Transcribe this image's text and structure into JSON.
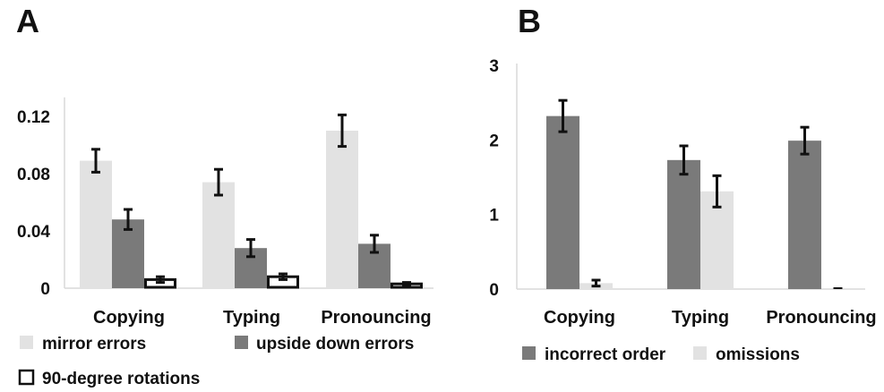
{
  "chart_data": [
    {
      "panel": "A",
      "type": "bar",
      "title": "",
      "xlabel": "",
      "ylabel": "",
      "categories": [
        "Copying",
        "Typing",
        "Pronouncing"
      ],
      "yticks": [
        "0",
        "0.04",
        "0.08",
        "0.12"
      ],
      "ylim": [
        0,
        0.132
      ],
      "grid": false,
      "legend": "bottom",
      "series": [
        {
          "name": "mirror errors",
          "color": "#e2e2e2",
          "stroke": "#e2e2e2",
          "values": [
            0.089,
            0.074,
            0.11
          ],
          "errors": [
            0.008,
            0.009,
            0.011
          ]
        },
        {
          "name": "upside down errors",
          "color": "#7a7a7a",
          "stroke": "#7a7a7a",
          "values": [
            0.048,
            0.028,
            0.031
          ],
          "errors": [
            0.007,
            0.006,
            0.006
          ]
        },
        {
          "name": "90-degree rotations",
          "color": "#ffffff",
          "stroke": "#111111",
          "values": [
            0.006,
            0.008,
            0.003
          ],
          "errors": [
            0.002,
            0.002,
            0.001
          ]
        }
      ]
    },
    {
      "panel": "B",
      "type": "bar",
      "title": "",
      "xlabel": "",
      "ylabel": "",
      "categories": [
        "Copying",
        "Typing",
        "Pronouncing"
      ],
      "yticks": [
        "0",
        "1",
        "2",
        "3"
      ],
      "ylim": [
        0,
        3
      ],
      "grid": false,
      "legend": "bottom",
      "series": [
        {
          "name": "incorrect order",
          "color": "#7a7a7a",
          "stroke": "#7a7a7a",
          "values": [
            2.32,
            1.73,
            1.99
          ],
          "errors": [
            0.21,
            0.19,
            0.18
          ]
        },
        {
          "name": "omissions",
          "color": "#e2e2e2",
          "stroke": "#e2e2e2",
          "values": [
            0.08,
            1.31,
            0.0
          ],
          "errors": [
            0.04,
            0.21,
            0.0
          ]
        }
      ]
    }
  ]
}
